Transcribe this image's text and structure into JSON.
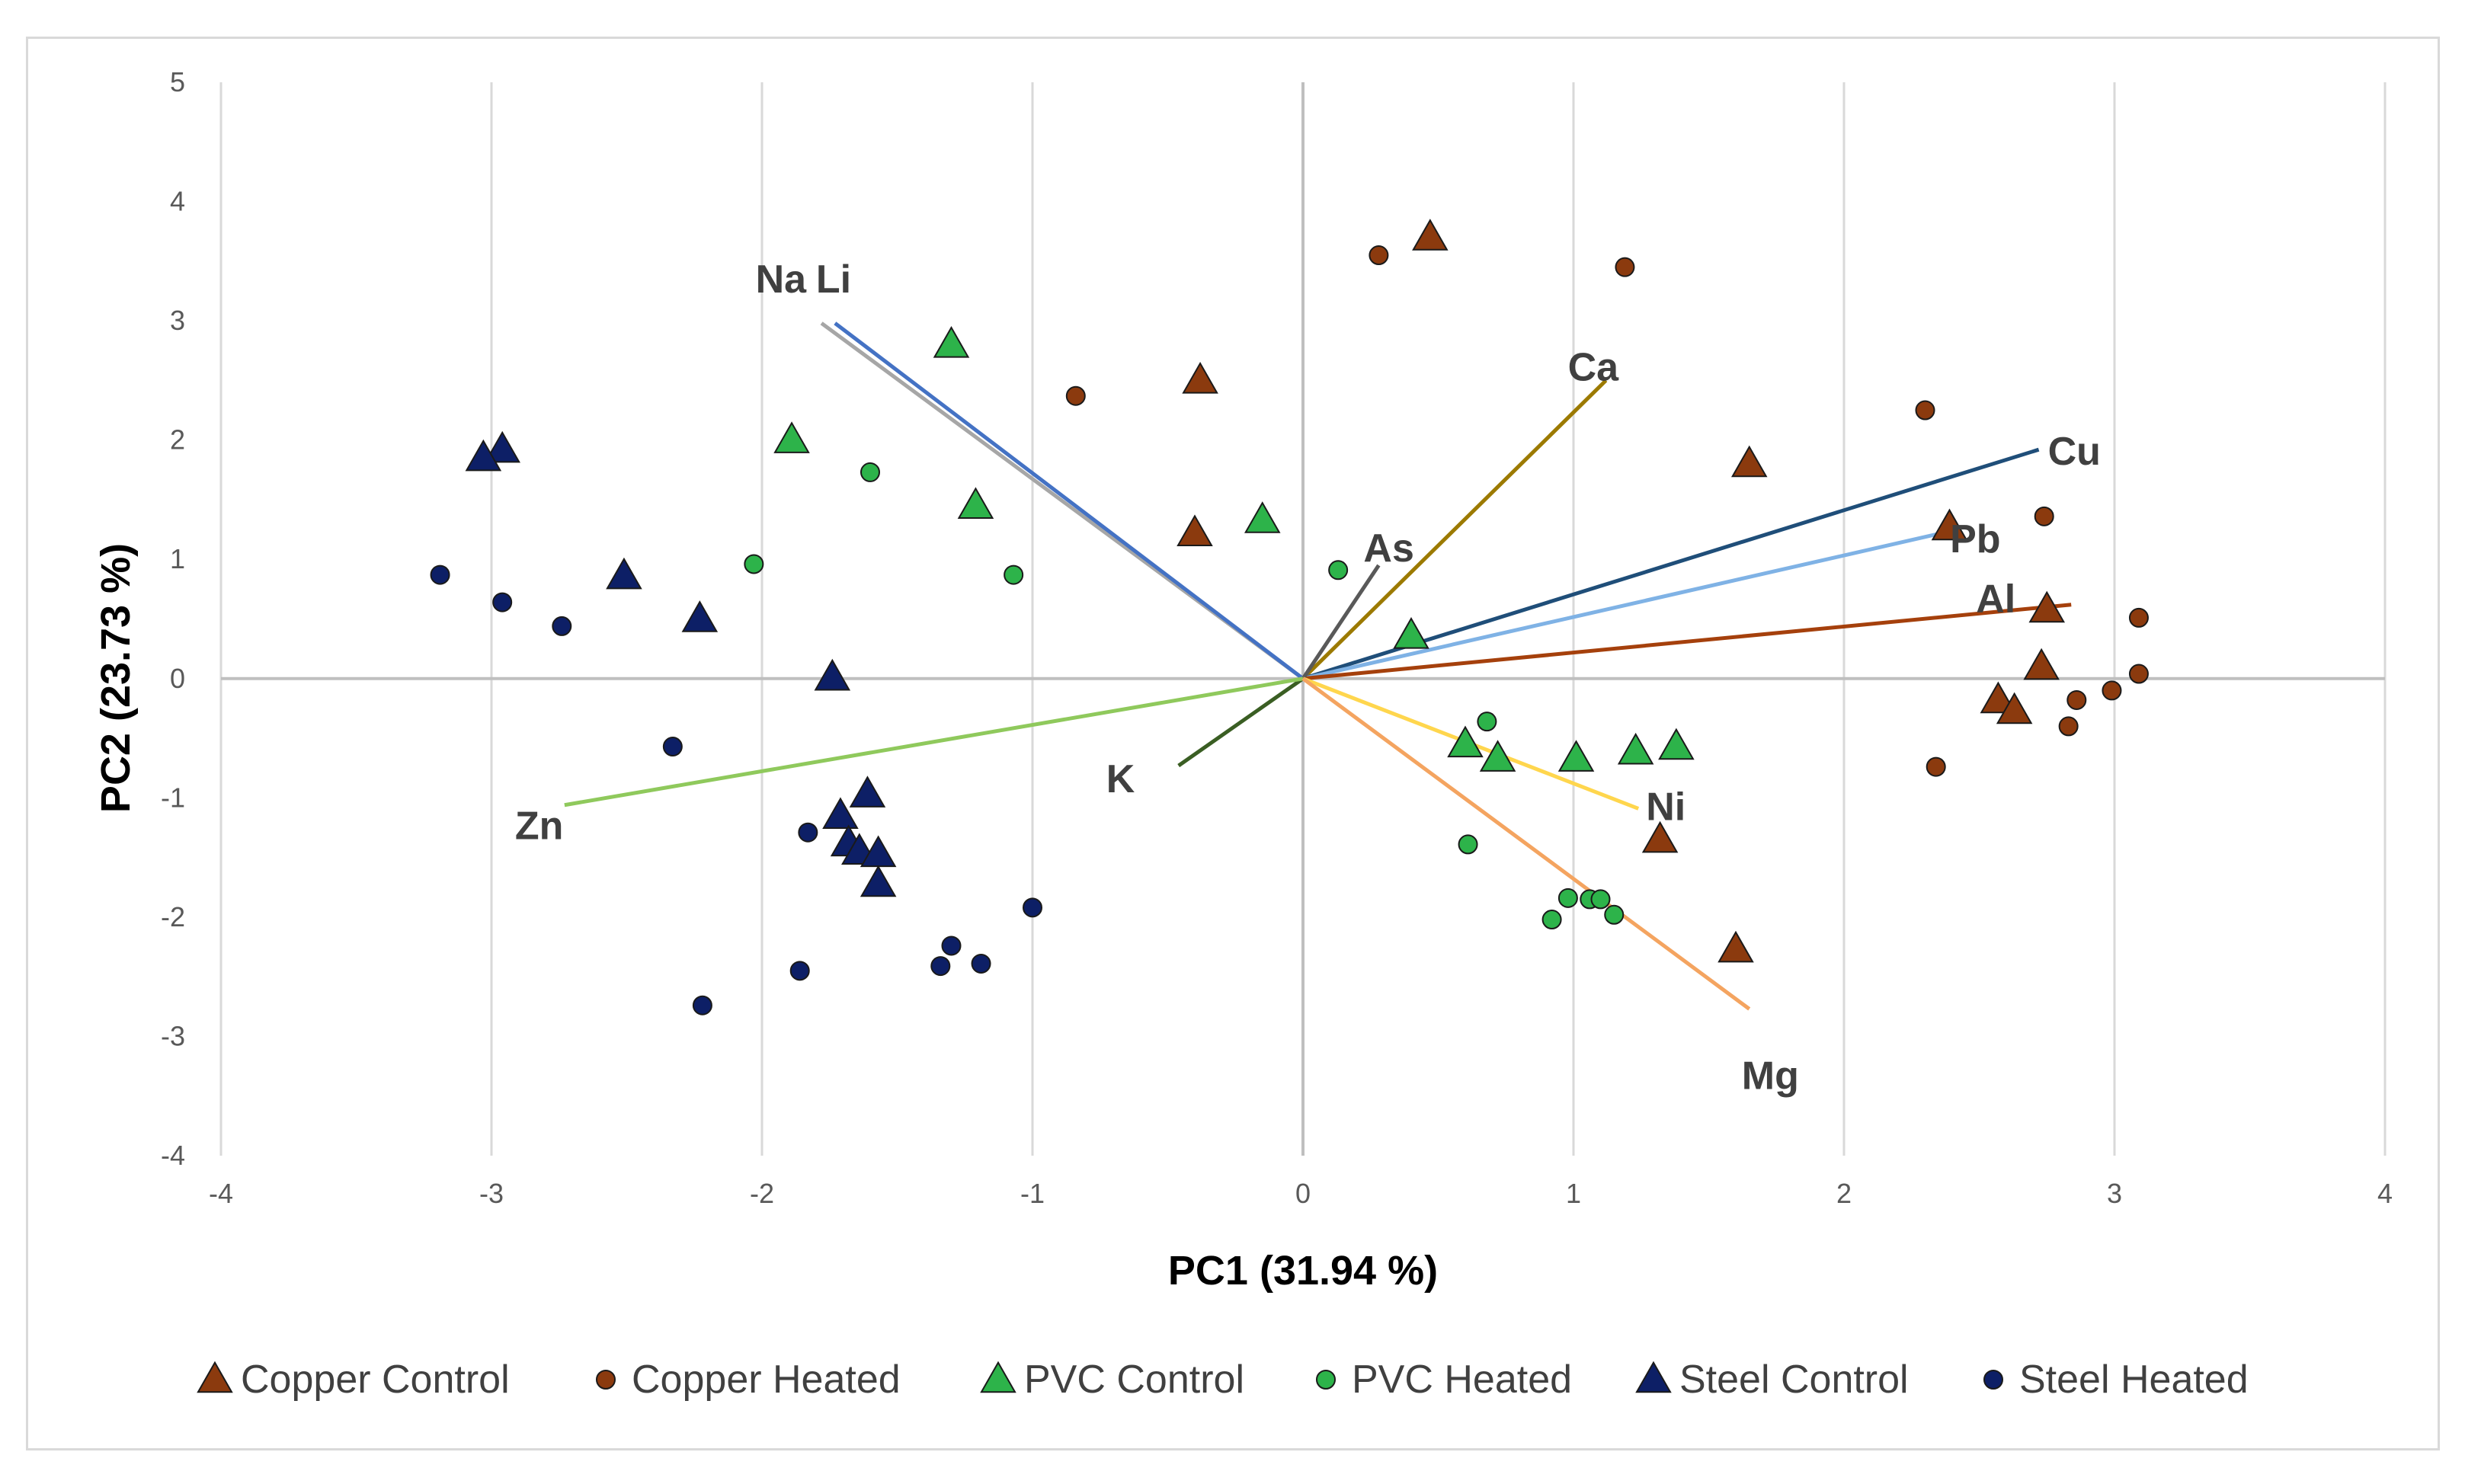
{
  "chart_data": {
    "type": "scatter",
    "title": "",
    "xlabel": "PC1 (31.94 %)",
    "ylabel": "PC2 (23.73 %)",
    "xlim": [
      -4,
      4
    ],
    "ylim": [
      -4,
      5
    ],
    "xticks": [
      -4,
      -3,
      -2,
      -1,
      0,
      1,
      2,
      3,
      4
    ],
    "yticks": [
      -4,
      -3,
      -2,
      -1,
      0,
      1,
      2,
      3,
      4,
      5
    ],
    "grid": "vertical",
    "legend_position": "bottom",
    "series": [
      {
        "name": "Copper Control",
        "marker": "triangle",
        "color": "#8B3A0E",
        "points": [
          [
            0.47,
            3.7
          ],
          [
            -0.38,
            2.5
          ],
          [
            -0.4,
            1.22
          ],
          [
            1.65,
            1.8
          ],
          [
            2.39,
            1.27
          ],
          [
            2.75,
            0.58
          ],
          [
            2.73,
            0.1
          ],
          [
            2.57,
            -0.18
          ],
          [
            2.63,
            -0.27
          ],
          [
            1.32,
            -1.35
          ],
          [
            1.6,
            -2.27
          ]
        ]
      },
      {
        "name": "Copper Heated",
        "marker": "circle",
        "color": "#8B3A0E",
        "points": [
          [
            0.28,
            3.55
          ],
          [
            1.19,
            3.45
          ],
          [
            -0.84,
            2.37
          ],
          [
            2.3,
            2.25
          ],
          [
            2.74,
            1.36
          ],
          [
            3.09,
            0.51
          ],
          [
            3.09,
            0.04
          ],
          [
            2.99,
            -0.1
          ],
          [
            2.86,
            -0.18
          ],
          [
            2.83,
            -0.4
          ],
          [
            2.34,
            -0.74
          ]
        ]
      },
      {
        "name": "PVC Control",
        "marker": "triangle",
        "color": "#2DB34A",
        "points": [
          [
            -1.3,
            2.8
          ],
          [
            -1.89,
            2.0
          ],
          [
            -1.21,
            1.45
          ],
          [
            -0.15,
            1.33
          ],
          [
            0.4,
            0.36
          ],
          [
            0.6,
            -0.55
          ],
          [
            0.72,
            -0.67
          ],
          [
            1.01,
            -0.67
          ],
          [
            1.23,
            -0.61
          ],
          [
            1.38,
            -0.57
          ]
        ]
      },
      {
        "name": "PVC Heated",
        "marker": "circle",
        "color": "#2DB34A",
        "points": [
          [
            -1.6,
            1.73
          ],
          [
            -2.03,
            0.96
          ],
          [
            -1.07,
            0.87
          ],
          [
            0.13,
            0.91
          ],
          [
            0.68,
            -0.36
          ],
          [
            0.61,
            -1.39
          ],
          [
            0.98,
            -1.84
          ],
          [
            1.06,
            -1.85
          ],
          [
            1.1,
            -1.85
          ],
          [
            1.15,
            -1.98
          ],
          [
            0.92,
            -2.02
          ]
        ]
      },
      {
        "name": "Steel Control",
        "marker": "triangle",
        "color": "#0D1F66",
        "points": [
          [
            -2.96,
            1.92
          ],
          [
            -3.03,
            1.85
          ],
          [
            -2.51,
            0.86
          ],
          [
            -2.23,
            0.5
          ],
          [
            -1.74,
            0.01
          ],
          [
            -1.61,
            -0.97
          ],
          [
            -1.71,
            -1.15
          ],
          [
            -1.68,
            -1.38
          ],
          [
            -1.64,
            -1.45
          ],
          [
            -1.57,
            -1.47
          ],
          [
            -1.57,
            -1.72
          ]
        ]
      },
      {
        "name": "Steel Heated",
        "marker": "circle",
        "color": "#0D1F66",
        "points": [
          [
            -3.19,
            0.87
          ],
          [
            -2.96,
            0.64
          ],
          [
            -2.74,
            0.44
          ],
          [
            -2.33,
            -0.57
          ],
          [
            -1.83,
            -1.29
          ],
          [
            -1.0,
            -1.92
          ],
          [
            -1.3,
            -2.24
          ],
          [
            -1.34,
            -2.41
          ],
          [
            -1.19,
            -2.39
          ],
          [
            -1.86,
            -2.45
          ],
          [
            -2.22,
            -2.74
          ]
        ]
      }
    ],
    "loadings": [
      {
        "label": "Na",
        "x": -1.78,
        "y": 2.98,
        "color": "#A6A6A6"
      },
      {
        "label": "Li",
        "x": -1.73,
        "y": 2.98,
        "color": "#4472C4"
      },
      {
        "label": "Ca",
        "x": 1.12,
        "y": 2.5,
        "color": "#9C7A00"
      },
      {
        "label": "Cu",
        "x": 2.72,
        "y": 1.92,
        "color": "#1F4E79"
      },
      {
        "label": "Pb",
        "x": 2.42,
        "y": 1.25,
        "color": "#7FB2E5"
      },
      {
        "label": "Al",
        "x": 2.84,
        "y": 0.62,
        "color": "#A5400C"
      },
      {
        "label": "As",
        "x": 0.28,
        "y": 0.95,
        "color": "#595959"
      },
      {
        "label": "K",
        "x": -0.46,
        "y": -0.73,
        "color": "#3A5E23"
      },
      {
        "label": "Zn",
        "x": -2.73,
        "y": -1.06,
        "color": "#8FC95C"
      },
      {
        "label": "Ni",
        "x": 1.24,
        "y": -1.09,
        "color": "#FFD64D"
      },
      {
        "label": "Mg",
        "x": 1.65,
        "y": -2.77,
        "color": "#F4A460"
      }
    ]
  }
}
